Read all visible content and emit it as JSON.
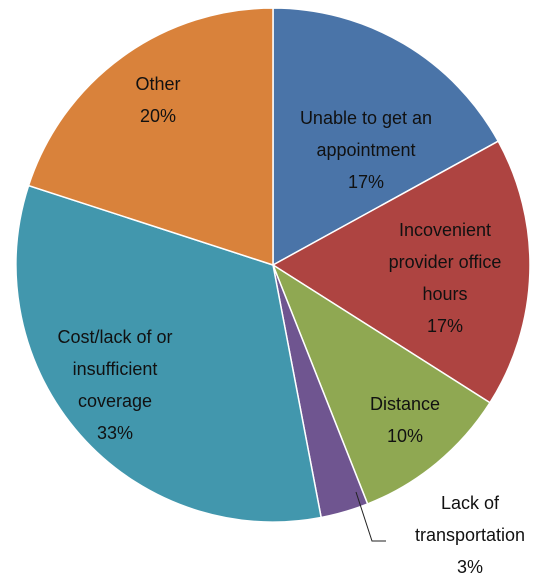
{
  "chart_data": {
    "type": "pie",
    "categories": [
      "Unable to get an appointment",
      "Incovenient provider office hours",
      "Distance",
      "Lack of transportation",
      "Cost/lack of or insufficient coverage",
      "Other"
    ],
    "values": [
      17,
      17,
      10,
      3,
      33,
      20
    ],
    "value_labels": [
      "17%",
      "17%",
      "10%",
      "3%",
      "33%",
      "20%"
    ],
    "colors": [
      "#4a74a8",
      "#ae4441",
      "#8fa852",
      "#6f5590",
      "#4297ad",
      "#d9823b"
    ]
  }
}
